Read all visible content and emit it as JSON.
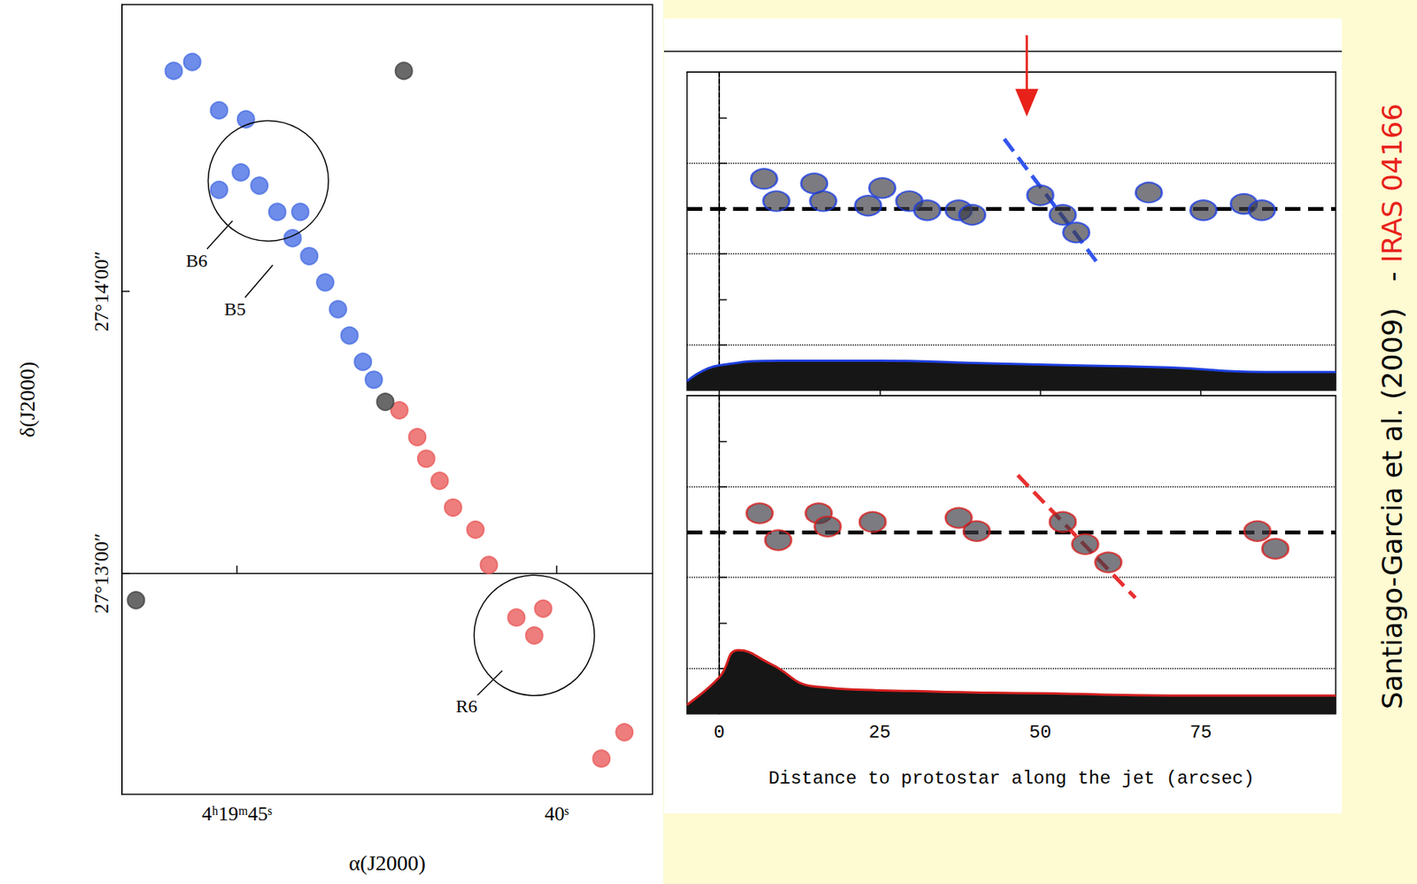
{
  "chart_data": [
    {
      "type": "scatter",
      "x_label": "α(J2000)",
      "y_label": "δ(J2000)",
      "xlim": [
        46.8,
        38.5
      ],
      "ylim": [
        -47,
        121
      ],
      "xticks": [
        {
          "value": 45,
          "label": "4ʰ19ᵐ45ˢ"
        },
        {
          "value": 40,
          "label": "40ˢ"
        }
      ],
      "yticks": [
        {
          "value": 0,
          "label": "27°13′00″"
        },
        {
          "value": 60,
          "label": "27°14′00″"
        }
      ],
      "series": [
        {
          "color": "#4a6fe3",
          "values": [
            [
              42.86,
              41.2
            ],
            [
              43.03,
              45.0
            ],
            [
              43.24,
              50.6
            ],
            [
              43.42,
              56.2
            ],
            [
              43.62,
              61.9
            ],
            [
              43.87,
              67.5
            ],
            [
              44.13,
              71.3
            ],
            [
              44.37,
              76.9
            ],
            [
              44.65,
              82.5
            ],
            [
              44.94,
              85.3
            ],
            [
              45.28,
              81.6
            ],
            [
              44.01,
              76.9
            ],
            [
              44.86,
              96.6
            ],
            [
              45.28,
              98.5
            ],
            [
              45.7,
              108.8
            ],
            [
              45.99,
              106.9
            ]
          ]
        },
        {
          "color": "#ea5c5c",
          "values": [
            [
              42.46,
              34.7
            ],
            [
              42.18,
              29.0
            ],
            [
              42.04,
              24.4
            ],
            [
              41.83,
              19.7
            ],
            [
              41.62,
              14.0
            ],
            [
              41.27,
              9.3
            ],
            [
              41.06,
              1.8
            ],
            [
              40.63,
              -9.4
            ],
            [
              40.35,
              -13.2
            ],
            [
              40.21,
              -7.5
            ],
            [
              38.94,
              -33.8
            ],
            [
              39.3,
              -39.4
            ]
          ]
        },
        {
          "color": "#444444",
          "values": [
            [
              42.39,
              106.9
            ],
            [
              46.58,
              -5.7
            ],
            [
              42.68,
              36.5
            ]
          ]
        }
      ],
      "annotations": [
        {
          "text": "B6",
          "x": 45.63,
          "y": 66.6,
          "points_to": [
            45.07,
            75.0
          ],
          "circle": {
            "x": 44.51,
            "y": 83.5,
            "radius": 12.8
          }
        },
        {
          "text": "B5",
          "x": 45.03,
          "y": 56.2,
          "points_to": [
            44.44,
            65.6
          ]
        },
        {
          "text": "R6",
          "x": 41.41,
          "y": -28.2,
          "points_to": [
            40.85,
            -20.7
          ],
          "circle": {
            "x": 40.35,
            "y": -13.2,
            "radius": 12.8
          }
        }
      ]
    },
    {
      "type": "scatter",
      "xlim": [
        -5,
        96
      ],
      "ylim": [
        7,
        0
      ],
      "yticks": [
        1,
        2,
        3,
        4,
        5,
        6
      ],
      "tick_labels": false,
      "series": [
        {
          "color": "#2040e0",
          "values": [
            [
              7.0,
              2.35
            ],
            [
              8.9,
              2.84
            ],
            [
              14.8,
              2.45
            ],
            [
              16.2,
              2.84
            ],
            [
              23.2,
              2.94
            ],
            [
              25.4,
              2.55
            ],
            [
              29.6,
              2.84
            ],
            [
              32.4,
              3.04
            ],
            [
              37.3,
              3.04
            ],
            [
              39.4,
              3.14
            ],
            [
              50.0,
              2.71
            ],
            [
              53.5,
              3.14
            ],
            [
              55.6,
              3.53
            ],
            [
              66.9,
              2.65
            ],
            [
              75.4,
              3.04
            ],
            [
              81.7,
              2.9
            ],
            [
              84.5,
              3.04
            ]
          ]
        },
        {
          "type": "area",
          "color": "#2040e0",
          "values": [
            [
              -5,
              6.8
            ],
            [
              0,
              6.45
            ],
            [
              10,
              6.35
            ],
            [
              25,
              6.35
            ],
            [
              40,
              6.4
            ],
            [
              55,
              6.45
            ],
            [
              70,
              6.5
            ],
            [
              85,
              6.6
            ],
            [
              96,
              6.6
            ]
          ]
        },
        {
          "type": "line",
          "line_style": "dashed",
          "color": "#3355ee",
          "values": [
            [
              44.4,
              1.47
            ],
            [
              58.7,
              4.16
            ]
          ]
        }
      ],
      "reference_lines": {
        "dotted_y": [
          2,
          4,
          6
        ],
        "dashed_y": 3,
        "dashed_x": 0
      },
      "arrow": {
        "x": 47.9,
        "color": "#e8221b"
      }
    },
    {
      "type": "scatter",
      "x_label": "Distance to protostar along the jet (arcsec)",
      "xlim": [
        -5,
        96
      ],
      "ylim": [
        7,
        0
      ],
      "xticks": [
        0,
        25,
        50,
        75
      ],
      "yticks": [
        1,
        2,
        3,
        4,
        5,
        6
      ],
      "tick_labels": "x",
      "series": [
        {
          "color": "#d42020",
          "values": [
            [
              6.3,
              2.59
            ],
            [
              9.2,
              3.18
            ],
            [
              15.5,
              2.59
            ],
            [
              16.9,
              2.88
            ],
            [
              23.9,
              2.78
            ],
            [
              37.3,
              2.69
            ],
            [
              40.1,
              2.98
            ],
            [
              53.5,
              2.78
            ],
            [
              57.0,
              3.27
            ],
            [
              60.6,
              3.67
            ],
            [
              83.8,
              2.98
            ],
            [
              86.6,
              3.37
            ]
          ]
        },
        {
          "type": "area",
          "color": "#d42020",
          "values": [
            [
              -5,
              6.8
            ],
            [
              0,
              6.2
            ],
            [
              3,
              5.6
            ],
            [
              8,
              5.9
            ],
            [
              15,
              6.4
            ],
            [
              30,
              6.5
            ],
            [
              50,
              6.55
            ],
            [
              75,
              6.6
            ],
            [
              96,
              6.6
            ]
          ]
        },
        {
          "type": "line",
          "line_style": "dashed",
          "color": "#e83030",
          "values": [
            [
              46.5,
              1.75
            ],
            [
              64.8,
              4.45
            ]
          ]
        }
      ],
      "reference_lines": {
        "dotted_y": [
          2,
          4,
          6
        ],
        "dashed_y": 3,
        "dashed_x": 0
      }
    }
  ],
  "credit": {
    "text": "Santiago-Garcia et al. (2009)",
    "separator": "-",
    "object": "IRAS 04166",
    "object_color": "#e8221b"
  }
}
